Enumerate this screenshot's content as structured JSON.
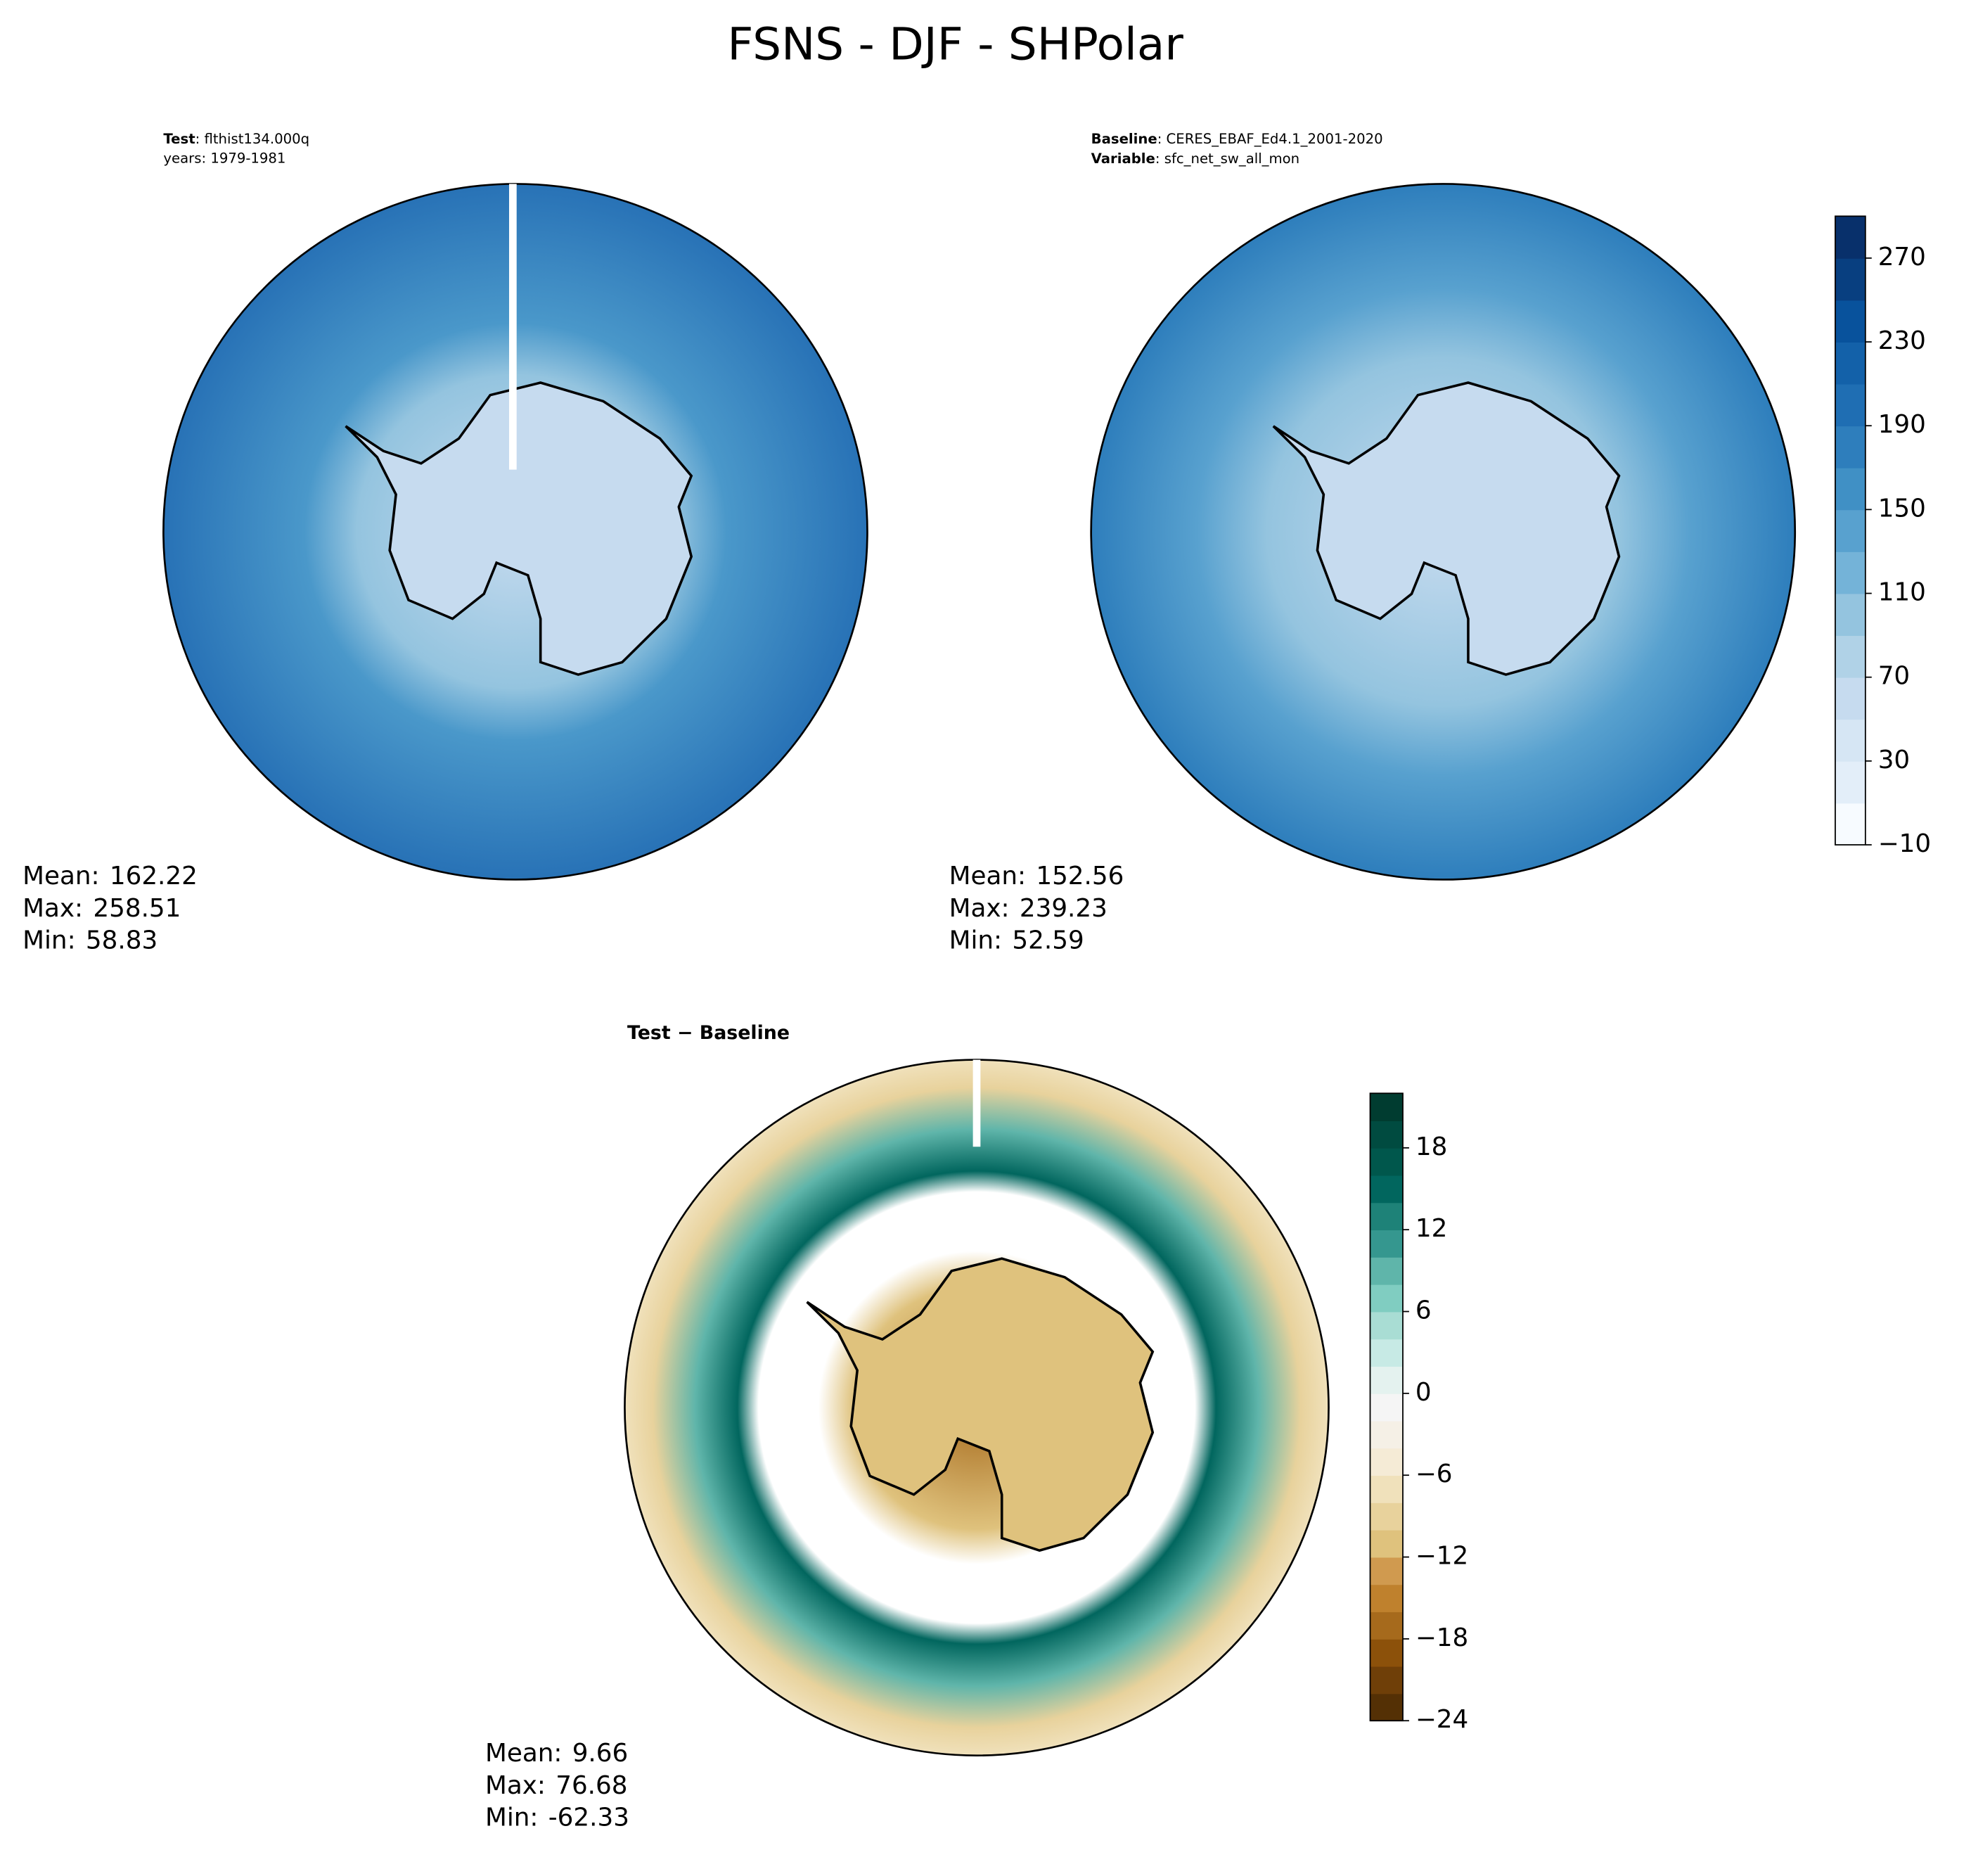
{
  "title": "FSNS - DJF - SHPolar",
  "panels": [
    {
      "header": [
        {
          "key": "Test",
          "value": ": flthist134.000q"
        }
      ],
      "header_line2": "years: 1979-1981",
      "stats": [
        {
          "label": "Mean:",
          "value": 162.22
        },
        {
          "label": "Max:",
          "value": 258.51
        },
        {
          "label": "Min:",
          "value": 58.83
        }
      ]
    },
    {
      "header": [
        {
          "key": "Baseline",
          "value": ": CERES_EBAF_Ed4.1_2001-2020"
        },
        {
          "key": "Variable",
          "value": ": sfc_net_sw_all_mon"
        }
      ],
      "stats": [
        {
          "label": "Mean:",
          "value": 152.56
        },
        {
          "label": "Max:",
          "value": 239.23
        },
        {
          "label": "Min:",
          "value": 52.59
        }
      ]
    },
    {
      "header_bold": "Test − Baseline",
      "stats": [
        {
          "label": "Mean:",
          "value": 9.66
        },
        {
          "label": "Max:",
          "value": 76.68
        },
        {
          "label": "Min:",
          "value": -62.33
        }
      ]
    }
  ],
  "colorbars": [
    {
      "lim": [
        -10,
        290
      ],
      "ticks": [
        {
          "value": -10,
          "label": "−10"
        },
        30,
        70,
        110,
        150,
        190,
        230,
        270
      ],
      "colors": [
        "#f7fbff",
        "#e3eef9",
        "#d6e6f4",
        "#c6dbef",
        "#b0d2e7",
        "#94c4df",
        "#74b3d8",
        "#58a1cf",
        "#4090c5",
        "#2e7ebc",
        "#1f6eb3",
        "#1361a9",
        "#08529c",
        "#083f80",
        "#08306b"
      ]
    },
    {
      "lim": [
        -24,
        22
      ],
      "ticks": [
        {
          "value": -24,
          "label": "−24"
        },
        {
          "value": -18,
          "label": "−18"
        },
        {
          "value": -12,
          "label": "−12"
        },
        {
          "value": -6,
          "label": "−6"
        },
        0,
        6,
        12,
        18
      ],
      "colors": [
        "#543005",
        "#6f3f08",
        "#8c510a",
        "#a66a1c",
        "#bf812d",
        "#d09a4f",
        "#dfc27d",
        "#e8d29c",
        "#f0e1bb",
        "#f5ebd6",
        "#f5f0e6",
        "#f5f5f5",
        "#e4f2ef",
        "#c7eae5",
        "#a9ddd4",
        "#80cdc1",
        "#5fb5aa",
        "#35978f",
        "#1e8278",
        "#01665e",
        "#00574c",
        "#004b40",
        "#003c30"
      ]
    }
  ]
}
